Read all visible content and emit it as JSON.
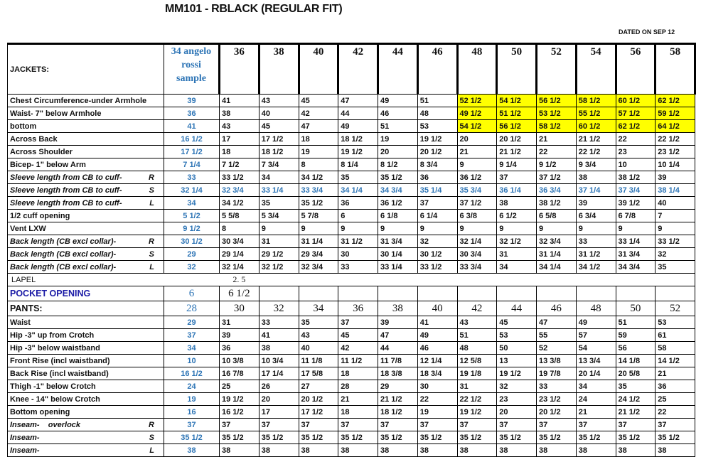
{
  "title": "MM101 - RBLACK (REGULAR FIT)",
  "dated": "DATED ON SEP 12",
  "colors": {
    "sample_blue": "#2e75b6",
    "highlight": "#ffff00",
    "pocket_blue": "#1a1aa6"
  },
  "jackets": {
    "label": "JACKETS:",
    "sample_header": [
      "34 angelo",
      "rossi",
      "sample"
    ],
    "sizes": [
      "36",
      "38",
      "40",
      "42",
      "44",
      "46",
      "48",
      "50",
      "52",
      "54",
      "56",
      "58"
    ],
    "highlight_sizes": [
      "48",
      "50",
      "52",
      "54",
      "56",
      "58"
    ],
    "rows": [
      {
        "label": "Chest Circumference-under Armhole",
        "grade": "",
        "sample": "39",
        "values": [
          "41",
          "43",
          "45",
          "47",
          "49",
          "51",
          "52 1/2",
          "54 1/2",
          "56 1/2",
          "58 1/2",
          "60 1/2",
          "62 1/2"
        ],
        "highlight": true
      },
      {
        "label": "Waist- 7\" below Armhole",
        "grade": "",
        "sample": "36",
        "values": [
          "38",
          "40",
          "42",
          "44",
          "46",
          "48",
          "49 1/2",
          "51 1/2",
          "53 1/2",
          "55 1/2",
          "57 1/2",
          "59 1/2"
        ],
        "highlight": true
      },
      {
        "label": "bottom",
        "grade": "",
        "sample": "41",
        "values": [
          "43",
          "45",
          "47",
          "49",
          "51",
          "53",
          "54 1/2",
          "56 1/2",
          "58 1/2",
          "60 1/2",
          "62 1/2",
          "64 1/2"
        ],
        "highlight": true
      },
      {
        "label": "Across Back",
        "grade": "",
        "sample": "16 1/2",
        "values": [
          "17",
          "17 1/2",
          "18",
          "18 1/2",
          "19",
          "19 1/2",
          "20",
          "20 1/2",
          "21",
          "21 1/2",
          "22",
          "22 1/2"
        ]
      },
      {
        "label": "Across Shoulder",
        "grade": "",
        "sample": "17 1/2",
        "values": [
          "18",
          "18 1/2",
          "19",
          "19 1/2",
          "20",
          "20 1/2",
          "21",
          "21 1/2",
          "22",
          "22 1/2",
          "23",
          "23 1/2"
        ]
      },
      {
        "label": "Bicep- 1\" below Arm",
        "grade": "",
        "sample": "7 1/4",
        "values": [
          "7 1/2",
          "7 3/4",
          "8",
          "8 1/4",
          "8 1/2",
          "8 3/4",
          "9",
          "9 1/4",
          "9 1/2",
          "9 3/4",
          "10",
          "10 1/4"
        ]
      },
      {
        "label": "Sleeve length from CB to cuff-",
        "grade": "R",
        "sample": "33",
        "values": [
          "33 1/2",
          "34",
          "34 1/2",
          "35",
          "35 1/2",
          "36",
          "36 1/2",
          "37",
          "37 1/2",
          "38",
          "38 1/2",
          "39"
        ],
        "italic": true
      },
      {
        "label": "Sleeve length from CB to cuff-",
        "grade": "S",
        "sample": "32 1/4",
        "values": [
          "32 3/4",
          "33 1/4",
          "33 3/4",
          "34 1/4",
          "34 3/4",
          "35 1/4",
          "35 3/4",
          "36 1/4",
          "36 3/4",
          "37 1/4",
          "37 3/4",
          "38 1/4"
        ],
        "italic": true,
        "blue": true
      },
      {
        "label": "Sleeve length from CB to cuff-",
        "grade": "L",
        "sample": "34",
        "values": [
          "34 1/2",
          "35",
          "35 1/2",
          "36",
          "36 1/2",
          "37",
          "37 1/2",
          "38",
          "38 1/2",
          "39",
          "39 1/2",
          "40"
        ],
        "italic": true
      },
      {
        "label": "1/2 cuff opening",
        "grade": "",
        "sample": "5 1/2",
        "values": [
          "5 5/8",
          "5 3/4",
          "5 7/8",
          "6",
          "6 1/8",
          "6 1/4",
          "6 3/8",
          "6 1/2",
          "6 5/8",
          "6 3/4",
          "6 7/8",
          "7"
        ]
      },
      {
        "label": "Vent LXW",
        "grade": "",
        "sample": "9 1/2",
        "values": [
          "8",
          "9",
          "9",
          "9",
          "9",
          "9",
          "9",
          "9",
          "9",
          "9",
          "9",
          "9"
        ]
      },
      {
        "label": "Back length (CB excl collar)-",
        "grade": "R",
        "sample": "30 1/2",
        "values": [
          "30 3/4",
          "31",
          "31 1/4",
          "31 1/2",
          "31 3/4",
          "32",
          "32 1/4",
          "32 1/2",
          "32 3/4",
          "33",
          "33 1/4",
          "33 1/2"
        ],
        "italic": true
      },
      {
        "label": "Back length (CB excl collar)-",
        "grade": "S",
        "sample": "29",
        "values": [
          "29 1/4",
          "29 1/2",
          "29 3/4",
          "30",
          "30 1/4",
          "30 1/2",
          "30 3/4",
          "31",
          "31 1/4",
          "31 1/2",
          "31 3/4",
          "32"
        ],
        "italic": true
      },
      {
        "label": "Back length (CB excl collar)-",
        "grade": "L",
        "sample": "32",
        "values": [
          "32 1/4",
          "32 1/2",
          "32 3/4",
          "33",
          "33 1/4",
          "33 1/2",
          "33 3/4",
          "34",
          "34 1/4",
          "34 1/2",
          "34 3/4",
          "35"
        ],
        "italic": true
      }
    ]
  },
  "lapel": {
    "label": "LAPEL",
    "value": "2. 5"
  },
  "pocket": {
    "label": "POCKET OPENING",
    "sample": "6",
    "value": "6 1/2"
  },
  "pants": {
    "label": "PANTS:",
    "sample_size": "28",
    "sizes": [
      "30",
      "32",
      "34",
      "36",
      "38",
      "40",
      "42",
      "44",
      "46",
      "48",
      "50",
      "52"
    ],
    "rows": [
      {
        "label": "Waist",
        "grade": "",
        "sample": "29",
        "values": [
          "31",
          "33",
          "35",
          "37",
          "39",
          "41",
          "43",
          "45",
          "47",
          "49",
          "51",
          "53"
        ]
      },
      {
        "label": "Hip -3\" up from Crotch",
        "grade": "",
        "sample": "37",
        "values": [
          "39",
          "41",
          "43",
          "45",
          "47",
          "49",
          "51",
          "53",
          "55",
          "57",
          "59",
          "61"
        ]
      },
      {
        "label": "Hip -3\" below waistband",
        "grade": "",
        "sample": "34",
        "values": [
          "36",
          "38",
          "40",
          "42",
          "44",
          "46",
          "48",
          "50",
          "52",
          "54",
          "56",
          "58"
        ]
      },
      {
        "label": "Front Rise (incl waistband)",
        "grade": "",
        "sample": "10",
        "values": [
          "10 3/8",
          "10 3/4",
          "11 1/8",
          "11 1/2",
          "11 7/8",
          "12 1/4",
          "12 5/8",
          "13",
          "13 3/8",
          "13 3/4",
          "14 1/8",
          "14 1/2"
        ]
      },
      {
        "label": "Back Rise (incl waistband)",
        "grade": "",
        "sample": "16 1/2",
        "values": [
          "16 7/8",
          "17 1/4",
          "17 5/8",
          "18",
          "18 3/8",
          "18 3/4",
          "19 1/8",
          "19 1/2",
          "19 7/8",
          "20 1/4",
          "20 5/8",
          "21"
        ]
      },
      {
        "label": "Thigh -1\" below Crotch",
        "grade": "",
        "sample": "24",
        "values": [
          "25",
          "26",
          "27",
          "28",
          "29",
          "30",
          "31",
          "32",
          "33",
          "34",
          "35",
          "36"
        ]
      },
      {
        "label": "Knee - 14\" below Crotch",
        "grade": "",
        "sample": "19",
        "values": [
          "19 1/2",
          "20",
          "20 1/2",
          "21",
          "21 1/2",
          "22",
          "22 1/2",
          "23",
          "23 1/2",
          "24",
          "24 1/2",
          "25"
        ]
      },
      {
        "label": "Bottom opening",
        "grade": "",
        "sample": "16",
        "values": [
          "16 1/2",
          "17",
          "17 1/2",
          "18",
          "18 1/2",
          "19",
          "19 1/2",
          "20",
          "20 1/2",
          "21",
          "21 1/2",
          "22"
        ]
      },
      {
        "label": "Inseam-    overlock",
        "grade": "R",
        "sample": "37",
        "values": [
          "37",
          "37",
          "37",
          "37",
          "37",
          "37",
          "37",
          "37",
          "37",
          "37",
          "37",
          "37"
        ],
        "italic": true
      },
      {
        "label": "Inseam-",
        "grade": "S",
        "sample": "35 1/2",
        "values": [
          "35 1/2",
          "35 1/2",
          "35 1/2",
          "35 1/2",
          "35 1/2",
          "35 1/2",
          "35 1/2",
          "35 1/2",
          "35 1/2",
          "35 1/2",
          "35 1/2",
          "35 1/2"
        ],
        "italic": true
      },
      {
        "label": "Inseam-",
        "grade": "L",
        "sample": "38",
        "values": [
          "38",
          "38",
          "38",
          "38",
          "38",
          "38",
          "38",
          "38",
          "38",
          "38",
          "38",
          "38"
        ],
        "italic": true
      }
    ]
  }
}
